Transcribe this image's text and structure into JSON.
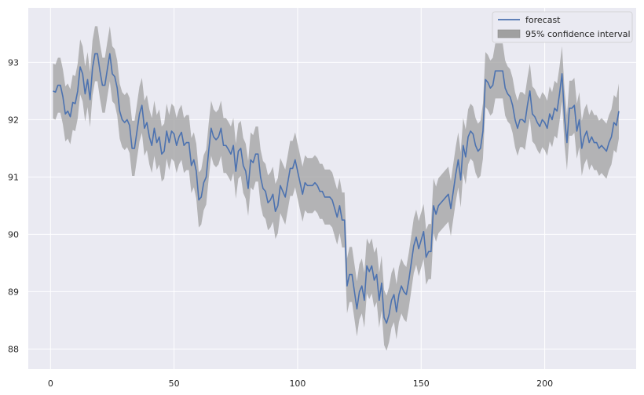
{
  "chart_data": {
    "type": "line",
    "title": "",
    "xlabel": "",
    "ylabel": "",
    "xlim": [
      -9,
      237
    ],
    "ylim": [
      87.65,
      93.95
    ],
    "x_ticks": [
      0,
      50,
      100,
      150,
      200
    ],
    "y_ticks": [
      88,
      89,
      90,
      91,
      92,
      93
    ],
    "grid": true,
    "legend": {
      "placement": "top-right",
      "entries": [
        {
          "label": "forecast",
          "kind": "line",
          "color": "#4c72b0"
        },
        {
          "label": "95% confidence interval",
          "kind": "patch",
          "color": "#a0a0a0"
        }
      ]
    },
    "colors": {
      "background": "#eaeaf2",
      "grid": "#ffffff",
      "forecast": "#4c72b0",
      "band": "#a0a0a0"
    },
    "series": [
      {
        "name": "forecast",
        "x_start": 1,
        "x_step": 1,
        "values": [
          92.5,
          92.48,
          92.6,
          92.6,
          92.4,
          92.1,
          92.15,
          92.05,
          92.3,
          92.28,
          92.5,
          92.92,
          92.8,
          92.45,
          92.7,
          92.35,
          92.9,
          93.15,
          93.15,
          92.85,
          92.6,
          92.6,
          92.88,
          93.15,
          92.8,
          92.75,
          92.55,
          92.15,
          92.0,
          91.95,
          92.0,
          91.9,
          91.5,
          91.5,
          91.8,
          92.1,
          92.25,
          91.85,
          91.95,
          91.7,
          91.55,
          91.85,
          91.6,
          91.7,
          91.4,
          91.45,
          91.8,
          91.6,
          91.8,
          91.75,
          91.55,
          91.7,
          91.78,
          91.55,
          91.6,
          91.6,
          91.2,
          91.3,
          91.1,
          90.6,
          90.65,
          90.9,
          91.0,
          91.45,
          91.85,
          91.7,
          91.65,
          91.7,
          91.85,
          91.55,
          91.55,
          91.48,
          91.4,
          91.55,
          91.1,
          91.45,
          91.5,
          91.2,
          91.1,
          90.8,
          91.3,
          91.25,
          91.4,
          91.4,
          91.0,
          90.8,
          90.75,
          90.55,
          90.6,
          90.7,
          90.4,
          90.5,
          90.85,
          90.75,
          90.65,
          90.9,
          91.15,
          91.15,
          91.3,
          91.1,
          90.9,
          90.7,
          90.9,
          90.85,
          90.85,
          90.85,
          90.9,
          90.85,
          90.75,
          90.75,
          90.65,
          90.65,
          90.65,
          90.6,
          90.45,
          90.3,
          90.5,
          90.25,
          90.25,
          89.1,
          89.3,
          89.3,
          89.0,
          88.7,
          89.0,
          89.1,
          88.85,
          89.45,
          89.35,
          89.45,
          89.2,
          89.3,
          88.85,
          89.15,
          88.55,
          88.45,
          88.6,
          88.85,
          88.95,
          88.65,
          88.95,
          89.1,
          89.0,
          88.95,
          89.2,
          89.5,
          89.8,
          89.95,
          89.75,
          89.9,
          90.05,
          89.6,
          89.7,
          89.7,
          90.5,
          90.35,
          90.5,
          90.55,
          90.6,
          90.65,
          90.7,
          90.45,
          90.75,
          91.05,
          91.3,
          90.95,
          91.55,
          91.35,
          91.7,
          91.8,
          91.75,
          91.55,
          91.45,
          91.5,
          91.8,
          92.7,
          92.65,
          92.55,
          92.6,
          92.85,
          92.85,
          92.85,
          92.85,
          92.55,
          92.45,
          92.4,
          92.25,
          92.0,
          91.85,
          92.0,
          92.0,
          91.95,
          92.25,
          92.5,
          92.1,
          92.05,
          91.95,
          91.88,
          92.0,
          91.95,
          91.85,
          92.1,
          92.0,
          92.2,
          92.15,
          92.45,
          92.8,
          92.05,
          91.6,
          92.2,
          92.2,
          92.25,
          91.8,
          92.0,
          91.5,
          91.7,
          91.8,
          91.6,
          91.7,
          91.6,
          91.6,
          91.5,
          91.55,
          91.5,
          91.45,
          91.6,
          91.7,
          91.95,
          91.9,
          92.15
        ]
      },
      {
        "name": "95% confidence interval",
        "band_halfwidth": 0.48
      }
    ]
  }
}
